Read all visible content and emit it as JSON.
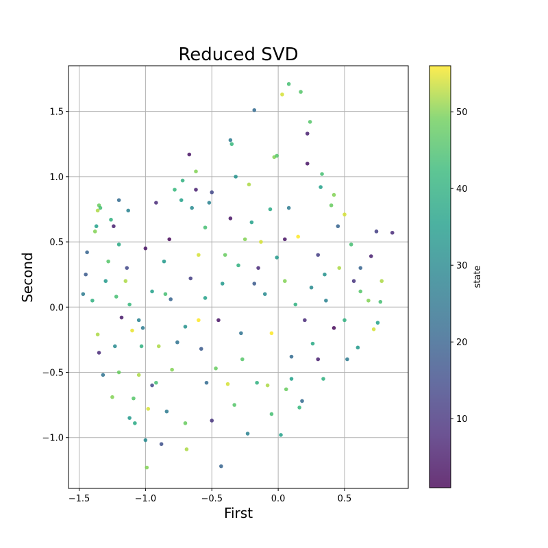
{
  "chart_data": {
    "type": "scatter",
    "title": "Reduced SVD",
    "xlabel": "First",
    "ylabel": "Second",
    "xlim": [
      -1.58,
      0.98
    ],
    "ylim": [
      -1.39,
      1.85
    ],
    "xticks": [
      -1.5,
      -1.0,
      -0.5,
      0.0,
      0.5
    ],
    "xtick_labels": [
      "−1.5",
      "−1.0",
      "−0.5",
      "0.0",
      "0.5"
    ],
    "yticks": [
      -1.0,
      -0.5,
      0.0,
      0.5,
      1.0,
      1.5
    ],
    "ytick_labels": [
      "−1.0",
      "−0.5",
      "0.0",
      "0.5",
      "1.0",
      "1.5"
    ],
    "grid": true,
    "colorbar": {
      "label": "state",
      "colormap": "viridis",
      "range": [
        1,
        56
      ],
      "ticks": [
        10,
        20,
        30,
        40,
        50
      ],
      "tick_labels": [
        "10",
        "20",
        "30",
        "40",
        "50"
      ]
    },
    "points": [
      {
        "x": -1.35,
        "y": 0.78,
        "c": 48
      },
      {
        "x": -1.34,
        "y": 0.76,
        "c": 44
      },
      {
        "x": -1.36,
        "y": 0.74,
        "c": 52
      },
      {
        "x": -1.37,
        "y": 0.62,
        "c": 36
      },
      {
        "x": -1.38,
        "y": 0.58,
        "c": 50
      },
      {
        "x": -1.44,
        "y": 0.42,
        "c": 20
      },
      {
        "x": -1.45,
        "y": 0.25,
        "c": 18
      },
      {
        "x": -1.47,
        "y": 0.1,
        "c": 26
      },
      {
        "x": -1.36,
        "y": -0.21,
        "c": 52
      },
      {
        "x": -1.35,
        "y": -0.35,
        "c": 8
      },
      {
        "x": -1.32,
        "y": -0.52,
        "c": 24
      },
      {
        "x": -1.3,
        "y": 0.2,
        "c": 34
      },
      {
        "x": -1.28,
        "y": 0.35,
        "c": 46
      },
      {
        "x": -1.26,
        "y": 0.67,
        "c": 40
      },
      {
        "x": -1.24,
        "y": 0.62,
        "c": 6
      },
      {
        "x": -1.2,
        "y": 0.82,
        "c": 22
      },
      {
        "x": -1.2,
        "y": 0.48,
        "c": 38
      },
      {
        "x": -1.22,
        "y": 0.08,
        "c": 44
      },
      {
        "x": -1.18,
        "y": -0.08,
        "c": 5
      },
      {
        "x": -1.23,
        "y": -0.3,
        "c": 30
      },
      {
        "x": -1.2,
        "y": -0.5,
        "c": 48
      },
      {
        "x": -1.25,
        "y": -0.69,
        "c": 50
      },
      {
        "x": -1.12,
        "y": -0.85,
        "c": 34
      },
      {
        "x": -1.13,
        "y": 0.74,
        "c": 28
      },
      {
        "x": -1.14,
        "y": 0.3,
        "c": 14
      },
      {
        "x": -1.12,
        "y": 0.02,
        "c": 42
      },
      {
        "x": -1.1,
        "y": -0.18,
        "c": 55
      },
      {
        "x": -1.09,
        "y": -0.7,
        "c": 46
      },
      {
        "x": -1.08,
        "y": -0.89,
        "c": 38
      },
      {
        "x": -1.05,
        "y": -0.52,
        "c": 52
      },
      {
        "x": -1.03,
        "y": -0.3,
        "c": 40
      },
      {
        "x": -1.02,
        "y": -0.16,
        "c": 26
      },
      {
        "x": -1.0,
        "y": 0.45,
        "c": 4
      },
      {
        "x": -1.0,
        "y": -1.02,
        "c": 30
      },
      {
        "x": -0.99,
        "y": -1.23,
        "c": 50
      },
      {
        "x": -0.98,
        "y": -0.78,
        "c": 54
      },
      {
        "x": -0.95,
        "y": 0.12,
        "c": 36
      },
      {
        "x": -0.92,
        "y": 0.8,
        "c": 8
      },
      {
        "x": -0.92,
        "y": -0.58,
        "c": 44
      },
      {
        "x": -0.9,
        "y": -0.3,
        "c": 52
      },
      {
        "x": -0.88,
        "y": -1.05,
        "c": 16
      },
      {
        "x": -0.86,
        "y": 0.35,
        "c": 34
      },
      {
        "x": -0.84,
        "y": -0.8,
        "c": 26
      },
      {
        "x": -0.82,
        "y": 0.52,
        "c": 2
      },
      {
        "x": -0.81,
        "y": 0.06,
        "c": 20
      },
      {
        "x": -0.8,
        "y": -0.48,
        "c": 50
      },
      {
        "x": -0.78,
        "y": 0.9,
        "c": 42
      },
      {
        "x": -0.76,
        "y": -0.27,
        "c": 24
      },
      {
        "x": -0.73,
        "y": 0.82,
        "c": 36
      },
      {
        "x": -0.72,
        "y": 0.97,
        "c": 40
      },
      {
        "x": -0.7,
        "y": -0.89,
        "c": 48
      },
      {
        "x": -0.69,
        "y": -1.09,
        "c": 52
      },
      {
        "x": -0.67,
        "y": 1.17,
        "c": 4
      },
      {
        "x": -0.66,
        "y": 0.22,
        "c": 12
      },
      {
        "x": -0.65,
        "y": 0.76,
        "c": 30
      },
      {
        "x": -0.62,
        "y": 1.04,
        "c": 50
      },
      {
        "x": -0.62,
        "y": 0.9,
        "c": 6
      },
      {
        "x": -0.6,
        "y": -0.1,
        "c": 56
      },
      {
        "x": -0.58,
        "y": -0.32,
        "c": 18
      },
      {
        "x": -0.55,
        "y": 0.61,
        "c": 44
      },
      {
        "x": -0.55,
        "y": 0.07,
        "c": 36
      },
      {
        "x": -0.54,
        "y": -0.58,
        "c": 22
      },
      {
        "x": -0.52,
        "y": 0.8,
        "c": 28
      },
      {
        "x": -0.5,
        "y": 0.88,
        "c": 14
      },
      {
        "x": -0.5,
        "y": -0.87,
        "c": 10
      },
      {
        "x": -0.47,
        "y": -0.47,
        "c": 48
      },
      {
        "x": -0.43,
        "y": -1.22,
        "c": 20
      },
      {
        "x": -0.42,
        "y": 0.18,
        "c": 34
      },
      {
        "x": -0.38,
        "y": -0.59,
        "c": 54
      },
      {
        "x": -0.36,
        "y": 1.28,
        "c": 26
      },
      {
        "x": -0.35,
        "y": 1.25,
        "c": 42
      },
      {
        "x": -0.36,
        "y": 0.68,
        "c": 4
      },
      {
        "x": -0.32,
        "y": 1.0,
        "c": 32
      },
      {
        "x": -0.3,
        "y": 0.32,
        "c": 40
      },
      {
        "x": -0.27,
        "y": -0.4,
        "c": 46
      },
      {
        "x": -0.25,
        "y": 0.52,
        "c": 50
      },
      {
        "x": -0.22,
        "y": 0.94,
        "c": 52
      },
      {
        "x": -0.23,
        "y": -0.97,
        "c": 28
      },
      {
        "x": -0.2,
        "y": 0.65,
        "c": 36
      },
      {
        "x": -0.18,
        "y": 1.51,
        "c": 22
      },
      {
        "x": -0.18,
        "y": 0.18,
        "c": 18
      },
      {
        "x": -0.16,
        "y": -0.58,
        "c": 40
      },
      {
        "x": -0.13,
        "y": 0.5,
        "c": 54
      },
      {
        "x": -0.1,
        "y": 0.1,
        "c": 30
      },
      {
        "x": -0.08,
        "y": -0.6,
        "c": 52
      },
      {
        "x": -0.06,
        "y": 0.75,
        "c": 38
      },
      {
        "x": -0.05,
        "y": -0.82,
        "c": 44
      },
      {
        "x": -0.03,
        "y": 1.15,
        "c": 50
      },
      {
        "x": -0.01,
        "y": 1.16,
        "c": 46
      },
      {
        "x": -0.01,
        "y": 0.38,
        "c": 34
      },
      {
        "x": 0.02,
        "y": -0.98,
        "c": 36
      },
      {
        "x": 0.03,
        "y": 1.63,
        "c": 54
      },
      {
        "x": 0.05,
        "y": 0.52,
        "c": 4
      },
      {
        "x": 0.06,
        "y": -0.63,
        "c": 48
      },
      {
        "x": 0.08,
        "y": 1.71,
        "c": 44
      },
      {
        "x": 0.08,
        "y": 0.76,
        "c": 26
      },
      {
        "x": 0.1,
        "y": -0.38,
        "c": 22
      },
      {
        "x": 0.13,
        "y": 0.02,
        "c": 40
      },
      {
        "x": 0.15,
        "y": 0.54,
        "c": 56
      },
      {
        "x": 0.17,
        "y": 1.65,
        "c": 46
      },
      {
        "x": 0.16,
        "y": -0.77,
        "c": 42
      },
      {
        "x": 0.2,
        "y": -0.1,
        "c": 8
      },
      {
        "x": 0.22,
        "y": 1.33,
        "c": 6
      },
      {
        "x": 0.24,
        "y": 1.42,
        "c": 46
      },
      {
        "x": 0.22,
        "y": 1.1,
        "c": 4
      },
      {
        "x": 0.25,
        "y": 0.15,
        "c": 30
      },
      {
        "x": 0.26,
        "y": -0.28,
        "c": 38
      },
      {
        "x": 0.3,
        "y": 0.4,
        "c": 12
      },
      {
        "x": 0.32,
        "y": 0.92,
        "c": 36
      },
      {
        "x": 0.33,
        "y": 1.02,
        "c": 44
      },
      {
        "x": 0.34,
        "y": -0.55,
        "c": 40
      },
      {
        "x": 0.36,
        "y": 0.05,
        "c": 28
      },
      {
        "x": 0.4,
        "y": 0.78,
        "c": 48
      },
      {
        "x": 0.42,
        "y": 0.86,
        "c": 50
      },
      {
        "x": 0.42,
        "y": -0.16,
        "c": 2
      },
      {
        "x": 0.45,
        "y": 0.62,
        "c": 20
      },
      {
        "x": 0.46,
        "y": 0.3,
        "c": 52
      },
      {
        "x": 0.5,
        "y": 0.71,
        "c": 54
      },
      {
        "x": 0.52,
        "y": -0.4,
        "c": 26
      },
      {
        "x": 0.55,
        "y": 0.48,
        "c": 44
      },
      {
        "x": 0.57,
        "y": 0.2,
        "c": 10
      },
      {
        "x": 0.6,
        "y": -0.31,
        "c": 34
      },
      {
        "x": 0.62,
        "y": 0.12,
        "c": 46
      },
      {
        "x": 0.68,
        "y": 0.05,
        "c": 50
      },
      {
        "x": 0.7,
        "y": 0.39,
        "c": 6
      },
      {
        "x": 0.72,
        "y": -0.17,
        "c": 54
      },
      {
        "x": 0.74,
        "y": 0.58,
        "c": 12
      },
      {
        "x": 0.75,
        "y": -0.12,
        "c": 36
      },
      {
        "x": 0.77,
        "y": 0.04,
        "c": 44
      },
      {
        "x": 0.78,
        "y": 0.2,
        "c": 52
      },
      {
        "x": 0.86,
        "y": 0.57,
        "c": 8
      },
      {
        "x": -1.4,
        "y": 0.05,
        "c": 40
      },
      {
        "x": -1.15,
        "y": 0.2,
        "c": 52
      },
      {
        "x": -0.95,
        "y": -0.6,
        "c": 14
      },
      {
        "x": -0.7,
        "y": -0.15,
        "c": 32
      },
      {
        "x": -0.45,
        "y": -0.1,
        "c": 4
      },
      {
        "x": -0.4,
        "y": 0.4,
        "c": 48
      },
      {
        "x": -0.28,
        "y": -0.2,
        "c": 24
      },
      {
        "x": -0.05,
        "y": -0.2,
        "c": 56
      },
      {
        "x": 0.1,
        "y": -0.55,
        "c": 36
      },
      {
        "x": 0.3,
        "y": -0.4,
        "c": 6
      },
      {
        "x": 0.5,
        "y": -0.1,
        "c": 40
      },
      {
        "x": 0.62,
        "y": 0.3,
        "c": 20
      },
      {
        "x": -0.6,
        "y": 0.4,
        "c": 54
      },
      {
        "x": -0.85,
        "y": 0.1,
        "c": 44
      },
      {
        "x": -1.05,
        "y": -0.1,
        "c": 28
      },
      {
        "x": -0.15,
        "y": 0.3,
        "c": 8
      },
      {
        "x": 0.05,
        "y": 0.2,
        "c": 50
      },
      {
        "x": 0.35,
        "y": 0.25,
        "c": 32
      },
      {
        "x": -0.33,
        "y": -0.75,
        "c": 46
      },
      {
        "x": 0.18,
        "y": -0.72,
        "c": 22
      }
    ]
  }
}
